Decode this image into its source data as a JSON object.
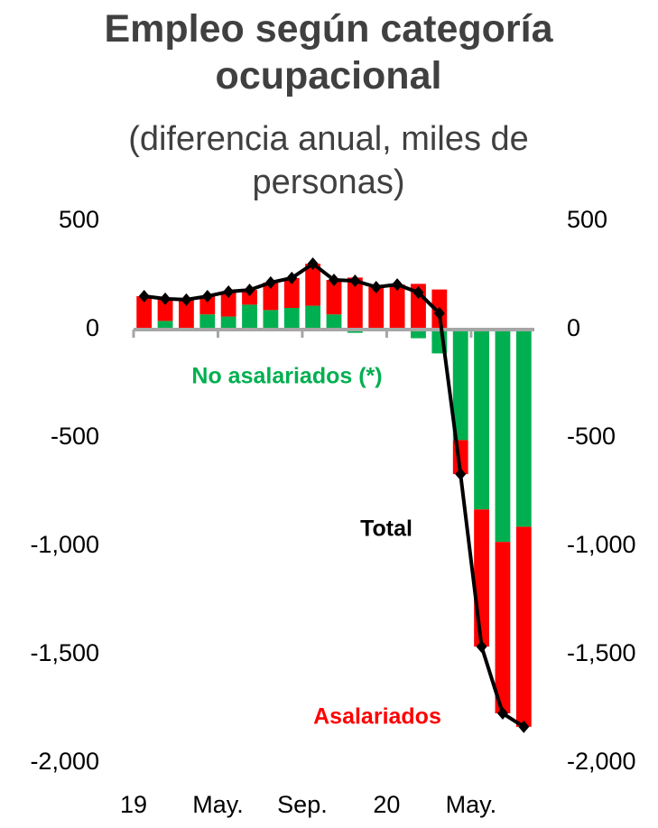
{
  "chart_data": {
    "type": "bar",
    "title": "Empleo según categoría ocupacional",
    "subtitle": "(diferencia anual, miles de personas)",
    "categories": [
      "19",
      null,
      null,
      null,
      "May.",
      null,
      null,
      null,
      "Sep.",
      null,
      null,
      null,
      "20",
      null,
      null,
      null,
      "May.",
      null,
      null
    ],
    "series": [
      {
        "name": "No asalariados (*)",
        "color": "#00b050",
        "values": [
          0,
          40,
          0,
          70,
          60,
          115,
          90,
          100,
          110,
          70,
          -15,
          0,
          0,
          -40,
          -110,
          -510,
          -830,
          -980,
          -910
        ]
      },
      {
        "name": "Asalariados",
        "color": "#ff0000",
        "values": [
          154,
          102,
          138,
          84,
          115,
          68,
          127,
          138,
          194,
          159,
          240,
          196,
          208,
          211,
          185,
          -157,
          -633,
          -791,
          -923
        ]
      },
      {
        "name": "Total",
        "type": "line",
        "color": "#000000",
        "values": [
          154,
          142,
          138,
          154,
          175,
          183,
          217,
          238,
          304,
          229,
          225,
          196,
          208,
          171,
          75,
          -667,
          -1463,
          -1771,
          -1833
        ]
      }
    ],
    "ylim": [
      -2000,
      500
    ],
    "yticks": [
      {
        "value": -2000,
        "label": "-2,000"
      },
      {
        "value": -1500,
        "label": "-1,500"
      },
      {
        "value": -1000,
        "label": "-1,000"
      },
      -500,
      0,
      500
    ],
    "y2lim": [
      -2000,
      500
    ],
    "y2ticks": [
      {
        "value": -2000,
        "label": "-2,000"
      },
      {
        "value": -1500,
        "label": "-1,500"
      },
      {
        "value": -1000,
        "label": "-1,000"
      },
      -500,
      0,
      500
    ]
  }
}
